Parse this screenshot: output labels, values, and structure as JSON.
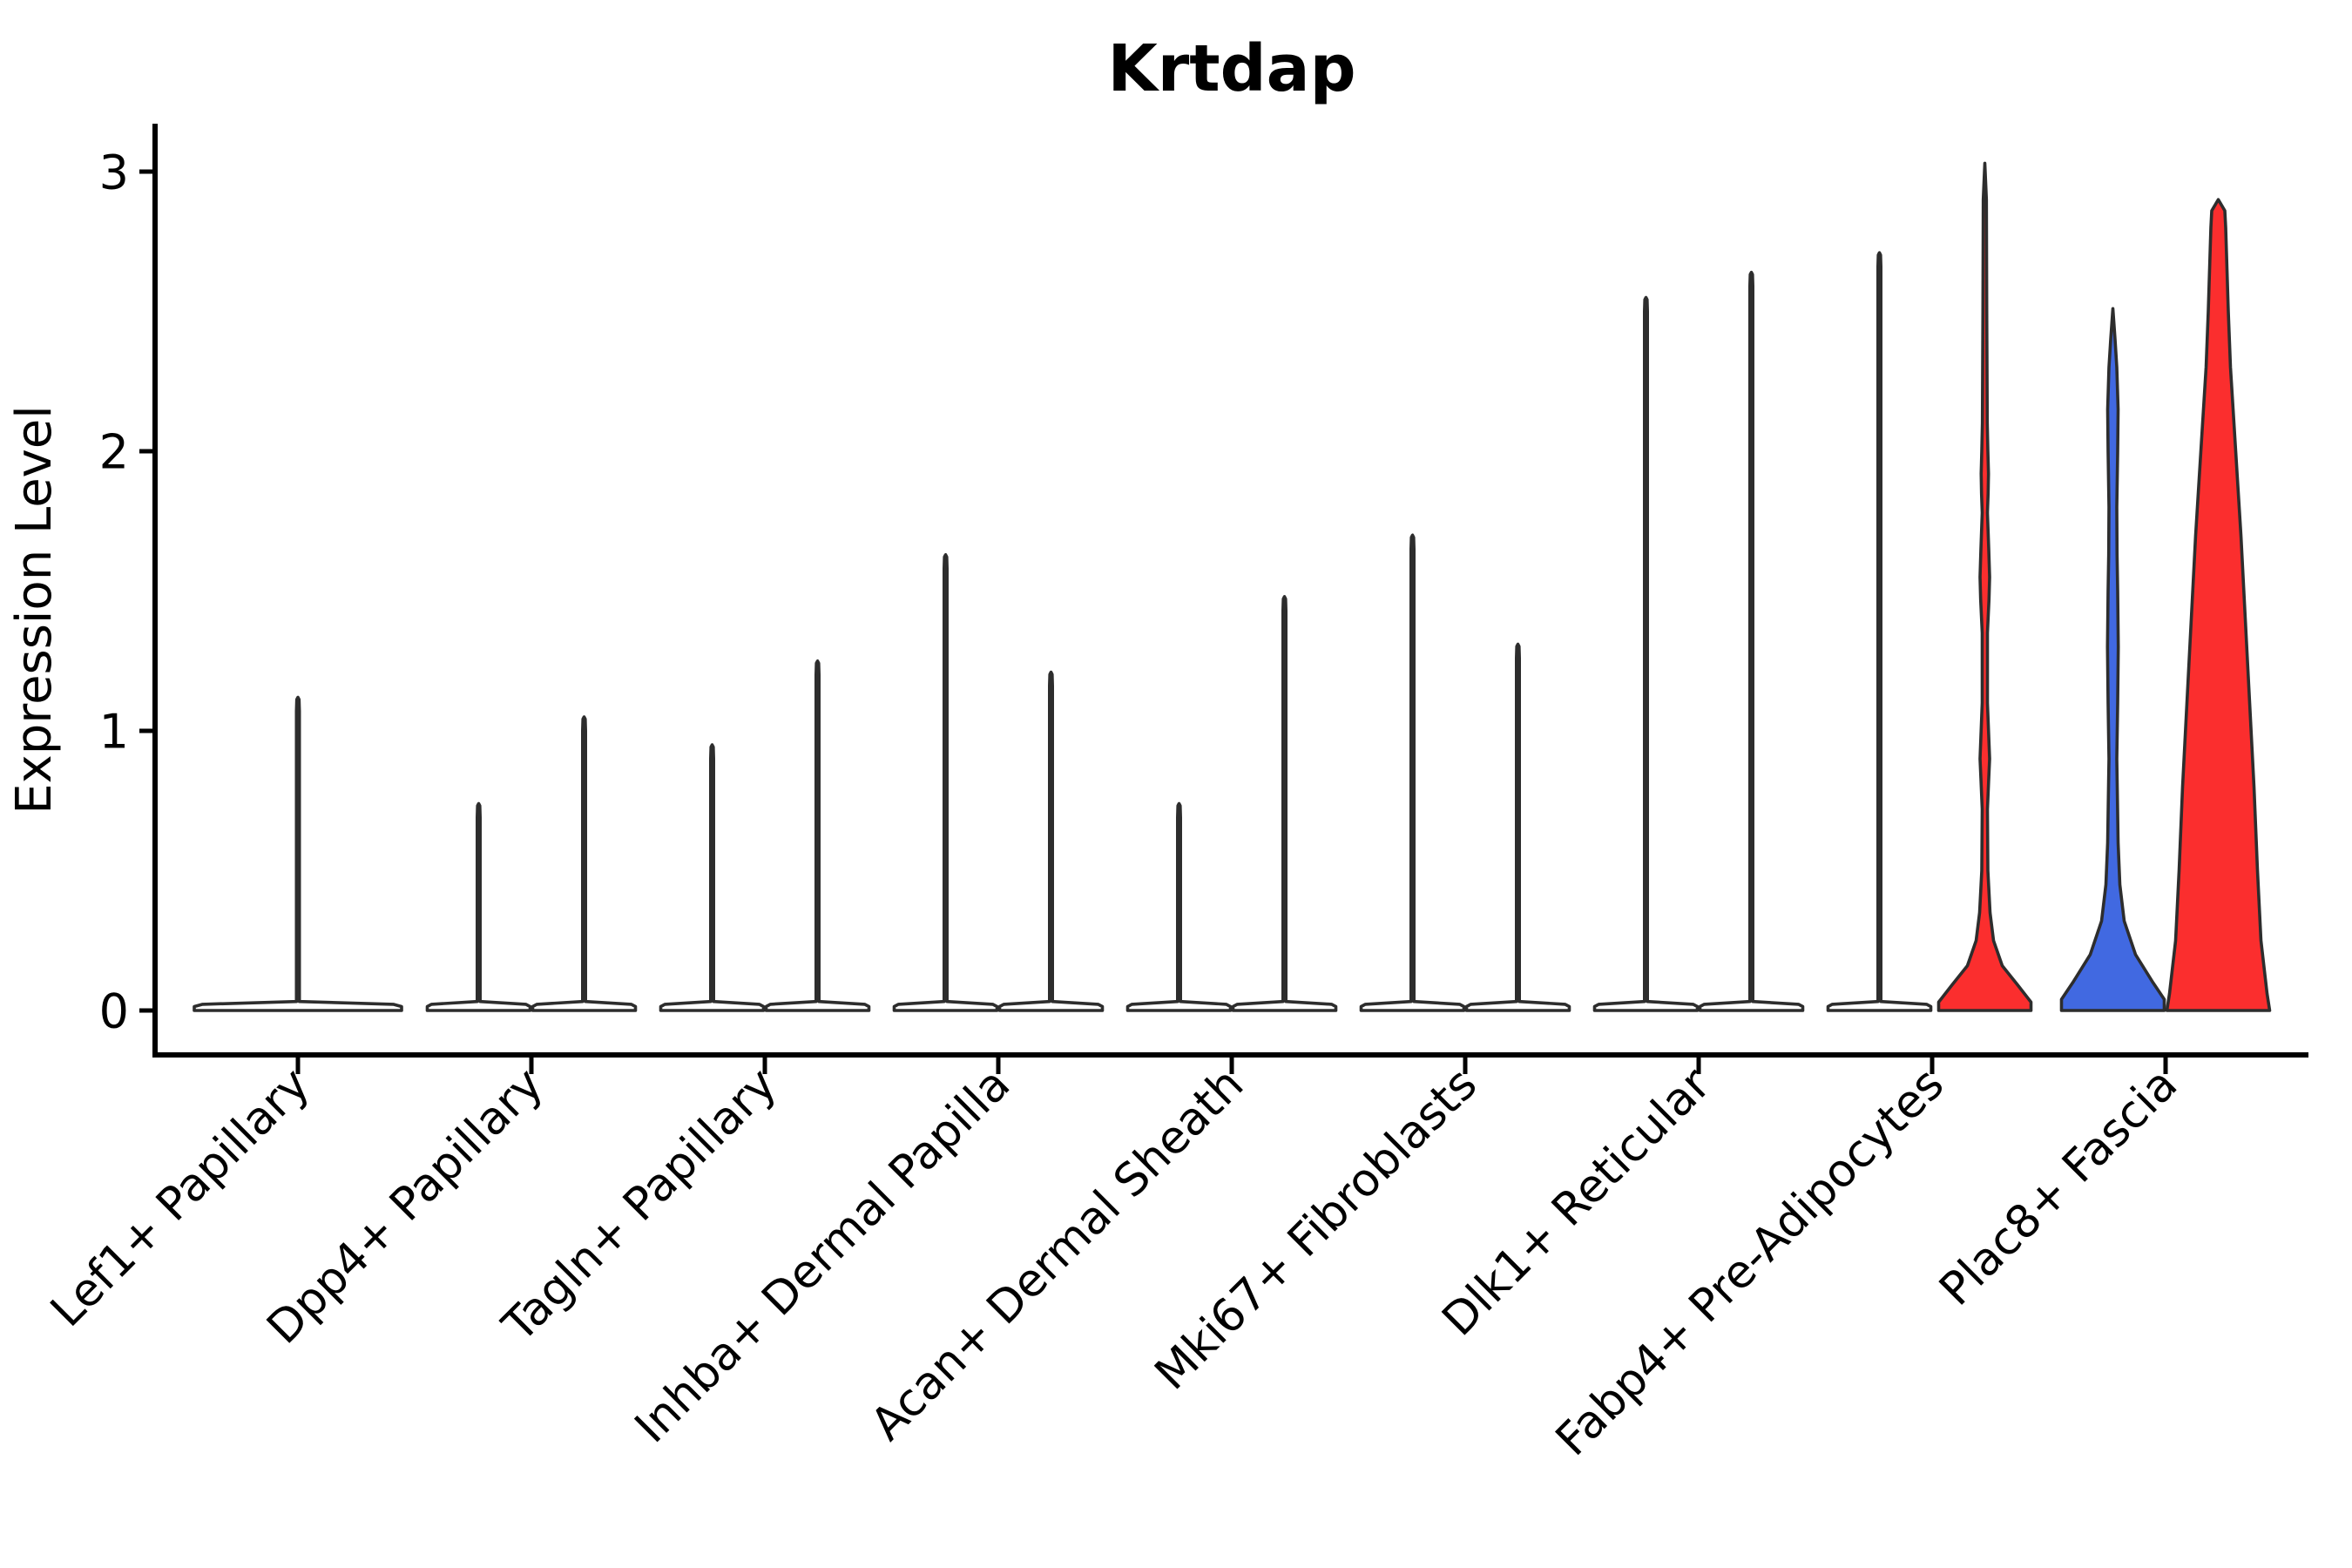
{
  "title": "Krtdap",
  "ylabel": "Expression Level",
  "chart_data": {
    "type": "violin",
    "title": "Krtdap",
    "xlabel": "",
    "ylabel": "Expression Level",
    "yticks": [
      "0",
      "1",
      "2",
      "3"
    ],
    "ylim": [
      -0.15,
      3.17
    ],
    "grid": false,
    "legend_position": "none",
    "colors": {
      "red_fill": "#fb2e2e",
      "blue_fill": "#4169e1",
      "violin_outline": "#2d2d2d",
      "axis_color": "#000000",
      "background": "#ffffff"
    },
    "description": "Violin plot of Krtdap expression; most violins are collapsed flat at 0 with a thin spike to the max expression value. Each category holds two split violins except the first (single full-width violin). Only the last three violins show visible colored fills.",
    "categories": [
      {
        "label": "Lef1+ Papillary",
        "violins": [
          {
            "side": "center",
            "width": "full",
            "shape": "flat-spike",
            "max": 1.12,
            "fill": "#ffffff"
          }
        ]
      },
      {
        "label": "Dpp4+ Papillary",
        "violins": [
          {
            "side": "left",
            "shape": "flat-spike",
            "max": 0.74,
            "fill": "#ffffff"
          },
          {
            "side": "right",
            "shape": "flat-spike",
            "max": 1.05,
            "fill": "#ffffff"
          }
        ]
      },
      {
        "label": "Tagln+ Papillary",
        "violins": [
          {
            "side": "left",
            "shape": "flat-spike",
            "max": 0.95,
            "fill": "#ffffff"
          },
          {
            "side": "right",
            "shape": "flat-spike",
            "max": 1.25,
            "fill": "#ffffff"
          }
        ]
      },
      {
        "label": "Inhba+ Dermal Papilla",
        "violins": [
          {
            "side": "left",
            "shape": "flat-spike",
            "max": 1.63,
            "fill": "#ffffff"
          },
          {
            "side": "right",
            "shape": "flat-spike",
            "max": 1.21,
            "fill": "#ffffff"
          }
        ]
      },
      {
        "label": "Acan+ Dermal Sheath",
        "violins": [
          {
            "side": "left",
            "shape": "flat-spike",
            "max": 0.74,
            "fill": "#ffffff"
          },
          {
            "side": "right",
            "shape": "flat-spike",
            "max": 1.48,
            "fill": "#ffffff"
          }
        ]
      },
      {
        "label": "Mki67+ Fibroblasts",
        "violins": [
          {
            "side": "left",
            "shape": "flat-spike",
            "max": 1.7,
            "fill": "#ffffff"
          },
          {
            "side": "right",
            "shape": "flat-spike",
            "max": 1.31,
            "fill": "#ffffff"
          }
        ]
      },
      {
        "label": "Dlk1+ Reticular",
        "violins": [
          {
            "side": "left",
            "shape": "flat-spike",
            "max": 2.55,
            "fill": "#ffffff"
          },
          {
            "side": "right",
            "shape": "flat-spike",
            "max": 2.64,
            "fill": "#ffffff"
          }
        ]
      },
      {
        "label": "Fabp4+ Pre-Adipocytes",
        "violins": [
          {
            "side": "left",
            "shape": "flat-spike",
            "max": 2.71,
            "fill": "#ffffff"
          },
          {
            "side": "right",
            "shape": "beaded-trumpet",
            "max": 3.03,
            "fill": "#fb2e2e",
            "profile": [
              [
                0,
                53
              ],
              [
                0.03,
                53
              ],
              [
                0.09,
                38
              ],
              [
                0.16,
                20
              ],
              [
                0.25,
                10
              ],
              [
                0.35,
                6
              ],
              [
                0.5,
                3.5
              ],
              [
                0.72,
                3
              ],
              [
                0.83,
                4.5
              ],
              [
                0.9,
                5.5
              ],
              [
                0.98,
                4.5
              ],
              [
                1.1,
                3
              ],
              [
                1.35,
                3
              ],
              [
                1.47,
                4.8
              ],
              [
                1.55,
                5.5
              ],
              [
                1.65,
                4.5
              ],
              [
                1.78,
                3
              ],
              [
                1.85,
                3.8
              ],
              [
                1.92,
                4.2
              ],
              [
                2.0,
                3.5
              ],
              [
                2.1,
                2.8
              ],
              [
                2.5,
                2.2
              ],
              [
                2.9,
                1.8
              ],
              [
                3.03,
                0
              ]
            ]
          }
        ]
      },
      {
        "label": "Plac8+ Fascia",
        "violins": [
          {
            "side": "left",
            "shape": "slender-trumpet",
            "max": 2.51,
            "fill": "#4169e1",
            "profile": [
              [
                0,
                59
              ],
              [
                0.04,
                59
              ],
              [
                0.1,
                46
              ],
              [
                0.2,
                26
              ],
              [
                0.32,
                13
              ],
              [
                0.45,
                8
              ],
              [
                0.6,
                6
              ],
              [
                0.9,
                4.5
              ],
              [
                1.1,
                5.5
              ],
              [
                1.3,
                6.2
              ],
              [
                1.5,
                5.5
              ],
              [
                1.63,
                4.8
              ],
              [
                1.8,
                4.5
              ],
              [
                2.0,
                5.5
              ],
              [
                2.15,
                6
              ],
              [
                2.3,
                4.5
              ],
              [
                2.4,
                2.5
              ],
              [
                2.51,
                0
              ]
            ]
          },
          {
            "side": "right",
            "shape": "cone",
            "max": 2.9,
            "fill": "#fb2e2e",
            "profile": [
              [
                0,
                59
              ],
              [
                0.06,
                56
              ],
              [
                0.25,
                49
              ],
              [
                0.5,
                45
              ],
              [
                0.8,
                41
              ],
              [
                1.1,
                36
              ],
              [
                1.4,
                31
              ],
              [
                1.7,
                26
              ],
              [
                2.0,
                20
              ],
              [
                2.3,
                14
              ],
              [
                2.5,
                11.5
              ],
              [
                2.7,
                9.5
              ],
              [
                2.8,
                8.5
              ],
              [
                2.86,
                7.5
              ],
              [
                2.9,
                0
              ]
            ]
          }
        ]
      }
    ]
  }
}
